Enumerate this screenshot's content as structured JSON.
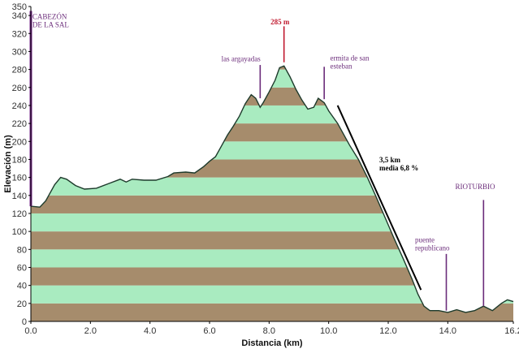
{
  "chart_data": {
    "type": "area",
    "xlabel": "Distancia   (km)",
    "ylabel": "Elevación (m)",
    "xlim": [
      0,
      16.2
    ],
    "ylim": [
      0,
      350
    ],
    "x_ticks": [
      "0.0",
      "2.0",
      "4.0",
      "6.0",
      "8.0",
      "10.0",
      "12.0",
      "14.0",
      "16.2"
    ],
    "x_tick_values": [
      0,
      2,
      4,
      6,
      8,
      10,
      12,
      14,
      16.2
    ],
    "y_ticks": [
      0,
      20,
      40,
      60,
      80,
      100,
      120,
      140,
      160,
      180,
      200,
      220,
      240,
      260,
      280,
      300,
      320,
      340,
      350
    ],
    "band_height": 20,
    "band_colors": [
      "#a68c6c",
      "#a9ebc0"
    ],
    "line_color": "#1d3a2b",
    "profile": [
      [
        0.0,
        128
      ],
      [
        0.3,
        127
      ],
      [
        0.5,
        134
      ],
      [
        0.8,
        152
      ],
      [
        1.0,
        160
      ],
      [
        1.2,
        158
      ],
      [
        1.5,
        151
      ],
      [
        1.8,
        147
      ],
      [
        2.2,
        148
      ],
      [
        2.6,
        153
      ],
      [
        3.0,
        158
      ],
      [
        3.2,
        155
      ],
      [
        3.4,
        158
      ],
      [
        3.8,
        157
      ],
      [
        4.2,
        157
      ],
      [
        4.6,
        161
      ],
      [
        4.8,
        165
      ],
      [
        5.2,
        166
      ],
      [
        5.5,
        165
      ],
      [
        5.8,
        172
      ],
      [
        6.0,
        178
      ],
      [
        6.2,
        183
      ],
      [
        6.4,
        195
      ],
      [
        6.6,
        207
      ],
      [
        6.8,
        217
      ],
      [
        7.0,
        228
      ],
      [
        7.2,
        242
      ],
      [
        7.4,
        252
      ],
      [
        7.55,
        248
      ],
      [
        7.7,
        238
      ],
      [
        7.8,
        243
      ],
      [
        8.0,
        255
      ],
      [
        8.2,
        268
      ],
      [
        8.35,
        282
      ],
      [
        8.5,
        284
      ],
      [
        8.7,
        272
      ],
      [
        8.9,
        258
      ],
      [
        9.1,
        246
      ],
      [
        9.3,
        236
      ],
      [
        9.5,
        238
      ],
      [
        9.65,
        248
      ],
      [
        9.85,
        243
      ],
      [
        10.0,
        234
      ],
      [
        10.3,
        220
      ],
      [
        10.7,
        196
      ],
      [
        11.0,
        180
      ],
      [
        11.3,
        160
      ],
      [
        11.6,
        138
      ],
      [
        11.9,
        115
      ],
      [
        12.2,
        92
      ],
      [
        12.5,
        70
      ],
      [
        12.8,
        47
      ],
      [
        13.0,
        30
      ],
      [
        13.2,
        17
      ],
      [
        13.4,
        12
      ],
      [
        13.7,
        12
      ],
      [
        14.0,
        10
      ],
      [
        14.3,
        13
      ],
      [
        14.6,
        10
      ],
      [
        14.9,
        12
      ],
      [
        15.2,
        17
      ],
      [
        15.5,
        12
      ],
      [
        15.8,
        20
      ],
      [
        16.0,
        24
      ],
      [
        16.2,
        22
      ]
    ],
    "markers": [
      {
        "x": 0.0,
        "y_from": 128,
        "y_to": 345,
        "color": "#7a2a8c"
      },
      {
        "x": 7.7,
        "y_from": 248,
        "y_to": 285,
        "color": "#6b2c7a"
      },
      {
        "x": 8.5,
        "y_from": 288,
        "y_to": 328,
        "color": "#c0192e"
      },
      {
        "x": 9.85,
        "y_from": 247,
        "y_to": 283,
        "color": "#6b2c7a"
      },
      {
        "x": 13.95,
        "y_from": 12,
        "y_to": 75,
        "color": "#6b2c7a"
      },
      {
        "x": 15.2,
        "y_from": 17,
        "y_to": 135,
        "color": "#6b2c7a"
      }
    ],
    "slope_line": {
      "from": [
        10.3,
        240
      ],
      "to": [
        13.1,
        35
      ]
    },
    "annotations": [
      {
        "lines": [
          "CABEZÓN",
          "DE LA SAL"
        ],
        "x": 0.05,
        "y": 336,
        "style": "purple"
      },
      {
        "lines": [
          "285 m"
        ],
        "x": 8.05,
        "y": 330,
        "style": "red"
      },
      {
        "lines": [
          "las argayadas"
        ],
        "x": 6.4,
        "y": 289,
        "style": "purple"
      },
      {
        "lines": [
          "ermita de san",
          "esteban"
        ],
        "x": 10.05,
        "y": 290,
        "style": "purple"
      },
      {
        "lines": [
          "3,5 km",
          "media 6,8 %"
        ],
        "x": 11.7,
        "y": 177,
        "style": "black"
      },
      {
        "lines": [
          "puente",
          "republicano"
        ],
        "x": 12.9,
        "y": 88,
        "style": "purple"
      },
      {
        "lines": [
          "RIOTURBIO"
        ],
        "x": 14.25,
        "y": 147,
        "style": "purple"
      }
    ]
  }
}
